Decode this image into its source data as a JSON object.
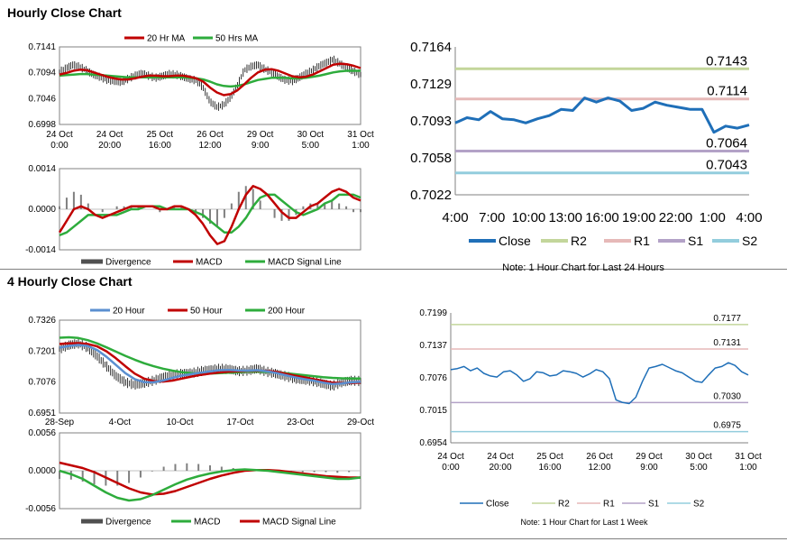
{
  "sections": {
    "hourly_title": "Hourly Close Chart",
    "four_hourly_title": "4 Hourly Close Chart"
  },
  "colors": {
    "red": "#c00000",
    "green": "#2eac3c",
    "blue": "#1f6fb8",
    "light_blue": "#5b8fd0",
    "gray": "#808080",
    "r2": "#c3d69b",
    "r1": "#e6b9b8",
    "s1": "#b3a2c7",
    "s2": "#93cddd"
  },
  "chart_data": [
    {
      "id": "hourly_price",
      "type": "line",
      "y_ticks": [
        "0.7141",
        "0.7094",
        "0.7046",
        "0.6998"
      ],
      "ylim": [
        0.6998,
        0.7141
      ],
      "x_ticks": [
        [
          "24 Oct",
          "0:00"
        ],
        [
          "24 Oct",
          "20:00"
        ],
        [
          "25 Oct",
          "16:00"
        ],
        [
          "26 Oct",
          "12:00"
        ],
        [
          "29 Oct",
          "9:00"
        ],
        [
          "30 Oct",
          "5:00"
        ],
        [
          "31 Oct",
          "1:00"
        ]
      ],
      "legend": [
        "20 Hr MA",
        "50 Hrs MA"
      ],
      "price": [
        0.7095,
        0.7102,
        0.7108,
        0.7104,
        0.7097,
        0.709,
        0.7085,
        0.708,
        0.7078,
        0.7076,
        0.7082,
        0.7088,
        0.7092,
        0.7088,
        0.7084,
        0.7087,
        0.7091,
        0.709,
        0.7086,
        0.7082,
        0.7079,
        0.7066,
        0.704,
        0.703,
        0.7034,
        0.7048,
        0.707,
        0.7098,
        0.7105,
        0.7108,
        0.71,
        0.7094,
        0.7086,
        0.708,
        0.7078,
        0.7084,
        0.7092,
        0.7098,
        0.7106,
        0.7112,
        0.7118,
        0.711,
        0.7102,
        0.7096,
        0.709
      ],
      "ma20": [
        0.709,
        0.7093,
        0.7097,
        0.7099,
        0.7098,
        0.7094,
        0.709,
        0.7086,
        0.7083,
        0.7081,
        0.7081,
        0.7083,
        0.7086,
        0.7088,
        0.7088,
        0.7087,
        0.7087,
        0.7088,
        0.7088,
        0.7086,
        0.7083,
        0.7077,
        0.7066,
        0.7057,
        0.7052,
        0.7054,
        0.7061,
        0.7072,
        0.7084,
        0.7094,
        0.7099,
        0.71,
        0.7097,
        0.7092,
        0.7087,
        0.7085,
        0.7086,
        0.709,
        0.7096,
        0.7102,
        0.7108,
        0.711,
        0.7109,
        0.7106,
        0.7102
      ],
      "ma50": [
        0.7088,
        0.7089,
        0.709,
        0.7091,
        0.7091,
        0.709,
        0.7089,
        0.7088,
        0.7087,
        0.7086,
        0.7085,
        0.7085,
        0.7085,
        0.7085,
        0.7085,
        0.7085,
        0.7085,
        0.7085,
        0.7085,
        0.7084,
        0.7083,
        0.7081,
        0.7077,
        0.7072,
        0.7069,
        0.7068,
        0.7069,
        0.7072,
        0.7076,
        0.708,
        0.7082,
        0.7084,
        0.7084,
        0.7084,
        0.7083,
        0.7083,
        0.7084,
        0.7086,
        0.7088,
        0.7091,
        0.7094,
        0.7096,
        0.7097,
        0.7097,
        0.7097
      ]
    },
    {
      "id": "hourly_macd",
      "type": "bar",
      "y_ticks": [
        "0.0014",
        "0.0000",
        "-0.0014"
      ],
      "ylim": [
        -0.0014,
        0.0014
      ],
      "legend": [
        "Divergence",
        "MACD",
        "MACD Signal Line"
      ],
      "macd": [
        -0.0008,
        -0.0004,
        0.0,
        0.0001,
        0.0,
        -0.0002,
        -0.0003,
        -0.0002,
        -0.0001,
        0.0,
        0.0001,
        0.0001,
        0.0001,
        0.0001,
        0.0,
        0.0,
        0.0001,
        0.0001,
        0.0,
        -0.0002,
        -0.0005,
        -0.0009,
        -0.0012,
        -0.0011,
        -0.0006,
        0.0,
        0.0005,
        0.0008,
        0.0007,
        0.0005,
        0.0002,
        -0.0001,
        -0.0003,
        -0.0003,
        -0.0001,
        0.0001,
        0.0002,
        0.0004,
        0.0006,
        0.0007,
        0.0006,
        0.0004,
        0.0003
      ],
      "signal": [
        -0.0009,
        -0.0008,
        -0.0006,
        -0.0004,
        -0.0002,
        -0.0002,
        -0.0002,
        -0.0002,
        -0.0002,
        -0.0001,
        0.0,
        0.0,
        0.0001,
        0.0001,
        0.0001,
        0.0,
        0.0,
        0.0,
        0.0,
        -0.0001,
        -0.0002,
        -0.0004,
        -0.0006,
        -0.0008,
        -0.0008,
        -0.0006,
        -0.0003,
        0.0001,
        0.0004,
        0.0005,
        0.0005,
        0.0003,
        0.0001,
        -0.0001,
        -0.0002,
        -0.0001,
        0.0,
        0.0002,
        0.0003,
        0.0005,
        0.0005,
        0.0005,
        0.0004
      ],
      "divergence": [
        0.0001,
        0.0004,
        0.0006,
        0.0005,
        0.0002,
        0.0,
        -0.0001,
        0.0,
        0.0001,
        0.0001,
        0.0001,
        0.0001,
        0.0,
        0.0,
        -0.0001,
        0.0,
        0.0001,
        0.0001,
        0.0,
        -0.0001,
        -0.0003,
        -0.0005,
        -0.0006,
        -0.0003,
        0.0002,
        0.0006,
        0.0008,
        0.0007,
        0.0003,
        0.0,
        -0.0003,
        -0.0004,
        -0.0004,
        -0.0002,
        0.0001,
        0.0002,
        0.0002,
        0.0002,
        0.0003,
        0.0002,
        0.0001,
        -0.0001,
        -0.0001
      ]
    },
    {
      "id": "hourly_pivots",
      "type": "line",
      "y_ticks": [
        "0.7164",
        "0.7129",
        "0.7093",
        "0.7058",
        "0.7022"
      ],
      "ylim": [
        0.7022,
        0.7164
      ],
      "x_ticks": [
        "4:00",
        "7:00",
        "10:00",
        "13:00",
        "16:00",
        "19:00",
        "22:00",
        "1:00",
        "4:00"
      ],
      "levels": [
        {
          "name": "R2",
          "value": 0.7143,
          "label": "0.7143"
        },
        {
          "name": "R1",
          "value": 0.7114,
          "label": "0.7114"
        },
        {
          "name": "S1",
          "value": 0.7064,
          "label": "0.7064"
        },
        {
          "name": "S2",
          "value": 0.7043,
          "label": "0.7043"
        }
      ],
      "close": [
        0.7091,
        0.7096,
        0.7094,
        0.7102,
        0.7095,
        0.7094,
        0.7091,
        0.7095,
        0.7098,
        0.7104,
        0.7103,
        0.7115,
        0.7111,
        0.7115,
        0.7112,
        0.7103,
        0.7105,
        0.7111,
        0.7108,
        0.7106,
        0.7104,
        0.7104,
        0.7082,
        0.7088,
        0.7086,
        0.7089
      ],
      "legend": [
        "Close",
        "R2",
        "R1",
        "S1",
        "S2"
      ],
      "note": "Note: 1 Hour Chart for Last 24 Hours"
    },
    {
      "id": "four_hourly_price",
      "type": "line",
      "y_ticks": [
        "0.7326",
        "0.7201",
        "0.7076",
        "0.6951"
      ],
      "ylim": [
        0.6951,
        0.7326
      ],
      "x_ticks": [
        "28-Sep",
        "4-Oct",
        "10-Oct",
        "17-Oct",
        "23-Oct",
        "29-Oct"
      ],
      "legend": [
        "20 Hour",
        "50 Hour",
        "200 Hour"
      ],
      "price": [
        0.721,
        0.7225,
        0.7232,
        0.7215,
        0.718,
        0.714,
        0.71,
        0.7075,
        0.7065,
        0.7072,
        0.7082,
        0.7095,
        0.7105,
        0.711,
        0.7112,
        0.712,
        0.7125,
        0.713,
        0.7128,
        0.712,
        0.7122,
        0.713,
        0.7118,
        0.711,
        0.71,
        0.709,
        0.7085,
        0.708,
        0.707,
        0.706,
        0.7075,
        0.7082,
        0.708
      ],
      "ma20": [
        0.7215,
        0.7222,
        0.7226,
        0.7222,
        0.7205,
        0.7178,
        0.7145,
        0.7112,
        0.7088,
        0.7076,
        0.7075,
        0.7082,
        0.7093,
        0.7102,
        0.7108,
        0.7114,
        0.7119,
        0.7124,
        0.7125,
        0.7123,
        0.7122,
        0.7124,
        0.712,
        0.7113,
        0.7104,
        0.7095,
        0.7088,
        0.7082,
        0.7074,
        0.7068,
        0.707,
        0.7075,
        0.7077
      ],
      "ma50": [
        0.723,
        0.7232,
        0.7233,
        0.723,
        0.722,
        0.72,
        0.7172,
        0.714,
        0.711,
        0.709,
        0.708,
        0.7078,
        0.7082,
        0.709,
        0.7098,
        0.7105,
        0.711,
        0.7115,
        0.7118,
        0.712,
        0.7121,
        0.7122,
        0.7121,
        0.7117,
        0.711,
        0.7102,
        0.7095,
        0.7088,
        0.708,
        0.7074,
        0.7072,
        0.7073,
        0.7074
      ],
      "ma200": [
        0.7255,
        0.7257,
        0.7254,
        0.7245,
        0.7232,
        0.7216,
        0.7199,
        0.7182,
        0.7166,
        0.7152,
        0.714,
        0.713,
        0.7122,
        0.7116,
        0.7112,
        0.711,
        0.711,
        0.7112,
        0.7114,
        0.7116,
        0.7118,
        0.7118,
        0.7117,
        0.7115,
        0.7112,
        0.7108,
        0.7104,
        0.71,
        0.7096,
        0.7093,
        0.7091,
        0.709,
        0.709
      ]
    },
    {
      "id": "four_hourly_macd",
      "type": "bar",
      "y_ticks": [
        "0.0056",
        "0.0000",
        "-0.0056"
      ],
      "ylim": [
        -0.0056,
        0.0056
      ],
      "legend": [
        "Divergence",
        "MACD",
        "MACD Signal Line"
      ],
      "macd": [
        0.0,
        -0.0005,
        -0.0012,
        -0.0022,
        -0.0032,
        -0.004,
        -0.0044,
        -0.0042,
        -0.0036,
        -0.0028,
        -0.002,
        -0.0013,
        -0.0008,
        -0.0004,
        -0.0001,
        0.0001,
        0.0002,
        0.0001,
        0.0,
        -0.0002,
        -0.0004,
        -0.0006,
        -0.0008,
        -0.001,
        -0.0012,
        -0.0012,
        -0.001
      ],
      "signal": [
        0.0012,
        0.0008,
        0.0004,
        -0.0002,
        -0.001,
        -0.0018,
        -0.0026,
        -0.0032,
        -0.0035,
        -0.0034,
        -0.003,
        -0.0024,
        -0.0018,
        -0.0012,
        -0.0007,
        -0.0003,
        0.0,
        0.0001,
        0.0001,
        0.0,
        -0.0002,
        -0.0004,
        -0.0006,
        -0.0008,
        -0.0009,
        -0.001,
        -0.001
      ],
      "divergence": [
        -0.0012,
        -0.0013,
        -0.0016,
        -0.002,
        -0.0022,
        -0.0022,
        -0.0018,
        -0.001,
        -0.0001,
        0.0006,
        0.001,
        0.0011,
        0.001,
        0.0008,
        0.0006,
        0.0004,
        0.0002,
        0.0,
        -0.0001,
        -0.0002,
        -0.0002,
        -0.0002,
        -0.0002,
        -0.0002,
        -0.0003,
        -0.0002,
        0.0
      ]
    },
    {
      "id": "weekly_pivots",
      "type": "line",
      "y_ticks": [
        "0.7199",
        "0.7137",
        "0.7076",
        "0.7015",
        "0.6954"
      ],
      "ylim": [
        0.6954,
        0.7199
      ],
      "x_ticks": [
        [
          "24 Oct",
          "0:00"
        ],
        [
          "24 Oct",
          "20:00"
        ],
        [
          "25 Oct",
          "16:00"
        ],
        [
          "26 Oct",
          "12:00"
        ],
        [
          "29 Oct",
          "9:00"
        ],
        [
          "30 Oct",
          "5:00"
        ],
        [
          "31 Oct",
          "1:00"
        ]
      ],
      "levels": [
        {
          "name": "R2",
          "value": 0.7177,
          "label": "0.7177"
        },
        {
          "name": "R1",
          "value": 0.7131,
          "label": "0.7131"
        },
        {
          "name": "S1",
          "value": 0.703,
          "label": "0.7030"
        },
        {
          "name": "S2",
          "value": 0.6975,
          "label": "0.6975"
        }
      ],
      "close": [
        0.7092,
        0.7094,
        0.7098,
        0.709,
        0.7095,
        0.7085,
        0.708,
        0.7078,
        0.7088,
        0.709,
        0.7082,
        0.707,
        0.7075,
        0.7088,
        0.7086,
        0.708,
        0.7082,
        0.709,
        0.7088,
        0.7085,
        0.7078,
        0.7084,
        0.7092,
        0.7088,
        0.7075,
        0.7035,
        0.703,
        0.7028,
        0.704,
        0.707,
        0.7095,
        0.7098,
        0.7102,
        0.7096,
        0.709,
        0.7086,
        0.7078,
        0.707,
        0.7068,
        0.7082,
        0.7095,
        0.7098,
        0.7105,
        0.71,
        0.7088,
        0.7082
      ],
      "legend": [
        "Close",
        "R2",
        "R1",
        "S1",
        "S2"
      ],
      "note": "Note: 1 Hour Chart for Last 1 Week"
    }
  ]
}
